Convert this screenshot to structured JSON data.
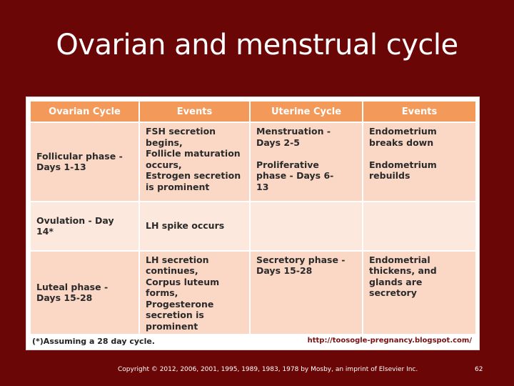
{
  "slide": {
    "title": "Ovarian and menstrual cycle",
    "copyright": "Copyright © 2012, 2006, 2001, 1995, 1989, 1983, 1978 by Mosby, an imprint of Elsevier Inc.",
    "page_number": "62"
  },
  "table": {
    "headers": [
      "Ovarian Cycle",
      "Events",
      "Uterine Cycle",
      "Events"
    ],
    "rows": [
      {
        "ovarian": "Follicular phase -\n  Days 1-13",
        "ovarian_events": "FSH secretion\n  begins,\nFollicle maturation\n  occurs,\nEstrogen secretion\n  is prominent",
        "uterine": "Menstruation -\n  Days 2-5\n\nProliferative\n  phase - Days 6-\n  13",
        "uterine_events": "Endometrium\n  breaks down\n\nEndometrium\n  rebuilds"
      },
      {
        "ovarian": "Ovulation - Day\n  14*",
        "ovarian_events": "LH spike occurs",
        "uterine": "",
        "uterine_events": ""
      },
      {
        "ovarian": "Luteal phase -\n  Days 15-28",
        "ovarian_events": "  LH secretion\n    continues,\nCorpus luteum\n    forms,\nProgesterone\n    secretion is\n    prominent",
        "uterine": "Secretory phase -\n  Days 15-28",
        "uterine_events": "Endometrial\n  thickens, and\n  glands are\n  secretory"
      }
    ],
    "footnote": "(*)Assuming a 28 day cycle.",
    "source_url": "http://toosogle-pregnancy.blogspot.com/"
  }
}
